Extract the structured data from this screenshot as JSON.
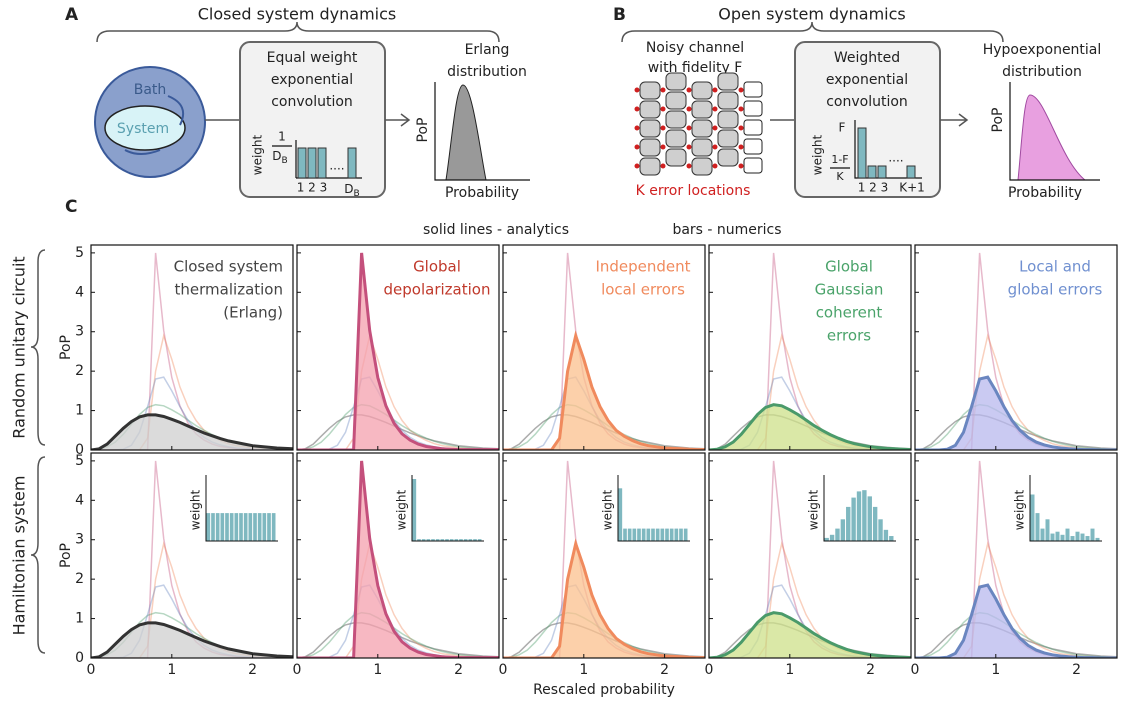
{
  "panel_a": {
    "label": "A",
    "title": "Closed system dynamics",
    "bath": "Bath",
    "system": "System",
    "box": [
      "Equal weight",
      "exponential",
      "convolution"
    ],
    "weight": "weight",
    "frac_num": "1",
    "frac_den": {
      "base": "D",
      "sub": "B"
    },
    "bar_ticks": "1 2 3",
    "dots": "....",
    "last_tick": {
      "base": "D",
      "sub": "B"
    },
    "out_title": [
      "Erlang",
      "distribution"
    ],
    "out_y": "PoP",
    "out_x": "Probability"
  },
  "panel_b": {
    "label": "B",
    "title": "Open system dynamics",
    "channel": [
      "Noisy channel",
      "with fidelity F"
    ],
    "locations": "K error locations",
    "box": [
      "Weighted",
      "exponential",
      "convolution"
    ],
    "weight": "weight",
    "f": "F",
    "frac_num": "1-F",
    "frac_den": "K",
    "bar_ticks": "1 2 3",
    "dots": "....",
    "last_tick": "K+1",
    "out_title": [
      "Hypoexponential",
      "distribution"
    ],
    "out_y": "PoP",
    "out_x": "Probability"
  },
  "panel_c_label": "C",
  "chart_data": {
    "type": "line",
    "note_left": "solid lines - analytics",
    "note_right": "bars - numerics",
    "rows": [
      "Random unitary circuit",
      "Hamiltonian system"
    ],
    "xlabel": "Rescaled probability",
    "ylabel": "PoP",
    "inset_label": "weight",
    "xlim": [
      0,
      2.5
    ],
    "ylim": [
      0,
      5.2
    ],
    "xticks": [
      0,
      1,
      2
    ],
    "yticks": [
      0,
      1,
      2,
      3,
      4,
      5
    ],
    "inset_ylim": [
      0,
      1
    ],
    "x": [
      0,
      0.1,
      0.2,
      0.3,
      0.4,
      0.5,
      0.6,
      0.7,
      0.8,
      0.9,
      1.0,
      1.1,
      1.2,
      1.3,
      1.4,
      1.5,
      1.6,
      1.7,
      1.8,
      1.9,
      2.0,
      2.1,
      2.2,
      2.3,
      2.4,
      2.5
    ],
    "curves": [
      {
        "label": [
          "Closed system",
          "thermalization",
          "(Erlang)"
        ],
        "color": "#333333",
        "fill": "#cfcfcf",
        "label_color": "#444444",
        "values": [
          0,
          0.03,
          0.15,
          0.35,
          0.55,
          0.72,
          0.84,
          0.89,
          0.89,
          0.85,
          0.78,
          0.7,
          0.61,
          0.52,
          0.43,
          0.36,
          0.29,
          0.23,
          0.19,
          0.15,
          0.11,
          0.09,
          0.07,
          0.05,
          0.04,
          0.03
        ],
        "inset": [
          0.45,
          0.45,
          0.45,
          0.45,
          0.45,
          0.45,
          0.45,
          0.45,
          0.45,
          0.45,
          0.45,
          0.45,
          0.45,
          0.45,
          0.45
        ]
      },
      {
        "label": [
          "Global",
          "depolarization"
        ],
        "color": "#c4507c",
        "fill": "#f4a0ad",
        "label_color": "#c0392b",
        "values": [
          0,
          0,
          0,
          0,
          0,
          0,
          0,
          0,
          5.0,
          3.03,
          1.84,
          1.12,
          0.68,
          0.41,
          0.25,
          0.15,
          0.09,
          0.06,
          0.03,
          0.02,
          0.01,
          0.01,
          0.01,
          0.01,
          0.01,
          0.01
        ],
        "inset": [
          1,
          0.03,
          0.03,
          0.03,
          0.03,
          0.03,
          0.03,
          0.03,
          0.03,
          0.03,
          0.03,
          0.03,
          0.03,
          0.03,
          0.03
        ]
      },
      {
        "label": [
          "Independent",
          "local errors"
        ],
        "color": "#f08a5d",
        "fill": "#fbc08e",
        "label_color": "#f08a5d",
        "values": [
          0,
          0,
          0,
          0,
          0,
          0,
          0,
          0.3,
          2.0,
          2.9,
          2.3,
          1.6,
          1.1,
          0.75,
          0.5,
          0.35,
          0.24,
          0.16,
          0.11,
          0.08,
          0.05,
          0.04,
          0.03,
          0.02,
          0.01,
          0.01
        ],
        "inset": [
          0.85,
          0.2,
          0.2,
          0.2,
          0.2,
          0.2,
          0.2,
          0.2,
          0.2,
          0.2,
          0.2,
          0.2,
          0.2,
          0.2,
          0.2
        ]
      },
      {
        "label": [
          "Global",
          "Gaussian",
          "coherent",
          "errors"
        ],
        "color": "#4a9a6a",
        "fill": "#cde08a",
        "label_color": "#4aa36a",
        "values": [
          0,
          0.02,
          0.08,
          0.2,
          0.4,
          0.65,
          0.9,
          1.08,
          1.15,
          1.12,
          1.02,
          0.9,
          0.76,
          0.62,
          0.5,
          0.39,
          0.3,
          0.22,
          0.16,
          0.12,
          0.08,
          0.06,
          0.04,
          0.03,
          0.02,
          0.01
        ],
        "inset": [
          0.05,
          0.1,
          0.2,
          0.35,
          0.55,
          0.7,
          0.8,
          0.82,
          0.72,
          0.55,
          0.35,
          0.18,
          0.08
        ]
      },
      {
        "label": [
          "Local and",
          "global errors"
        ],
        "color": "#6a86c0",
        "fill": "#b8b8ee",
        "label_color": "#7090d0",
        "values": [
          0,
          0,
          0,
          0,
          0.02,
          0.12,
          0.45,
          1.1,
          1.8,
          1.85,
          1.5,
          1.1,
          0.75,
          0.5,
          0.32,
          0.2,
          0.13,
          0.08,
          0.05,
          0.03,
          0.02,
          0.01,
          0.01,
          0,
          0,
          0
        ],
        "inset": [
          0.75,
          0.45,
          0.2,
          0.35,
          0.12,
          0.15,
          0.1,
          0.2,
          0.08,
          0.15,
          0.12,
          0.08,
          0.2,
          0.05
        ]
      }
    ]
  }
}
